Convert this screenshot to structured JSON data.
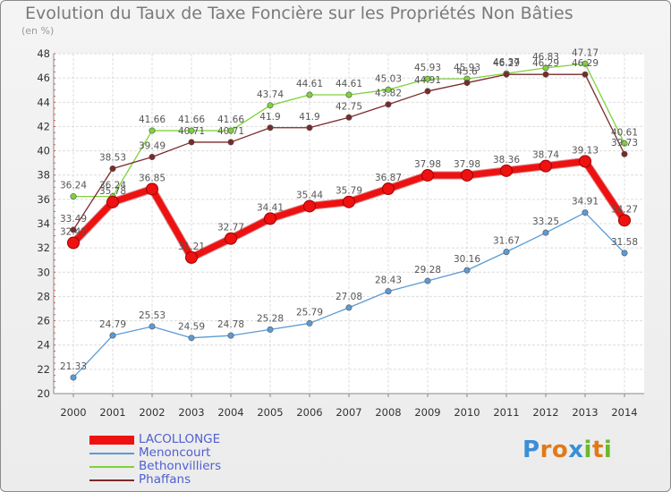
{
  "title": "Evolution du Taux de Taxe Foncière sur les Propriétés Non Bâties",
  "unit": "(en %)",
  "logo": {
    "letters": [
      "P",
      "r",
      "o",
      "x",
      "i",
      "t",
      "i"
    ],
    "colors": [
      "#3a8fd6",
      "#e07a1a",
      "#e07a1a",
      "#3a8fd6",
      "#6ab82c",
      "#e07a1a",
      "#6ab82c"
    ]
  },
  "chart_data": {
    "type": "line",
    "title": "Evolution du Taux de Taxe Foncière sur les Propriétés Non Bâties",
    "ylabel": "(en %)",
    "xlabel": "",
    "ylim": [
      20,
      48
    ],
    "yticks": [
      20,
      22,
      24,
      26,
      28,
      30,
      32,
      34,
      36,
      38,
      40,
      42,
      44,
      46,
      48
    ],
    "grid": true,
    "legend": "bottom-left",
    "categories": [
      "2000",
      "2001",
      "2002",
      "2003",
      "2004",
      "2005",
      "2006",
      "2007",
      "2008",
      "2009",
      "2010",
      "2011",
      "2012",
      "2013",
      "2014"
    ],
    "series": [
      {
        "name": "LACOLLONGE",
        "color": "#ee1111",
        "thick": true,
        "values": [
          32.42,
          35.78,
          36.85,
          31.21,
          32.77,
          34.41,
          35.44,
          35.79,
          36.87,
          37.98,
          37.98,
          38.36,
          38.74,
          39.13,
          34.27
        ],
        "labels": [
          "32.42",
          "35.78",
          "36.85",
          "31.21",
          "32.77",
          "34.41",
          "35.44",
          "35.79",
          "36.87",
          "37.98",
          "37.98",
          "38.36",
          "38.74",
          "39.13",
          "34.27"
        ]
      },
      {
        "name": "Menoncourt",
        "color": "#5b9bd5",
        "thick": false,
        "values": [
          21.33,
          24.79,
          25.53,
          24.59,
          24.78,
          25.28,
          25.79,
          27.08,
          28.43,
          29.28,
          30.16,
          31.67,
          33.25,
          34.91,
          31.58
        ],
        "labels": [
          "21.33",
          "24.79",
          "25.53",
          "24.59",
          "24.78",
          "25.28",
          "25.79",
          "27.08",
          "28.43",
          "29.28",
          "30.16",
          "31.67",
          "33.25",
          "34.91",
          "31.58"
        ]
      },
      {
        "name": "Bethonvilliers",
        "color": "#7ed23a",
        "thick": false,
        "values": [
          36.24,
          36.24,
          41.66,
          41.66,
          41.66,
          43.74,
          44.61,
          44.61,
          45.03,
          45.93,
          45.93,
          46.37,
          46.83,
          47.17,
          40.61
        ],
        "labels": [
          "36.24",
          "36.24",
          "41.66",
          "41.66",
          "41.66",
          "43.74",
          "44.61",
          "44.61",
          "45.03",
          "45.93",
          "45.93",
          "46.37",
          "46.83",
          "47.17",
          "40.61"
        ]
      },
      {
        "name": "Phaffans",
        "color": "#7a2a2a",
        "thick": false,
        "values": [
          33.49,
          38.53,
          39.49,
          40.71,
          40.71,
          41.9,
          41.9,
          42.75,
          43.82,
          44.91,
          45.6,
          46.29,
          46.29,
          46.29,
          39.73
        ],
        "labels": [
          "33.49",
          "38.53",
          "39.49",
          "40.71",
          "40.71",
          "41.9",
          "41.9",
          "42.75",
          "43.82",
          "44.91",
          "45.6",
          "46.29",
          "46.29",
          "46.29",
          "39.73"
        ]
      }
    ]
  }
}
